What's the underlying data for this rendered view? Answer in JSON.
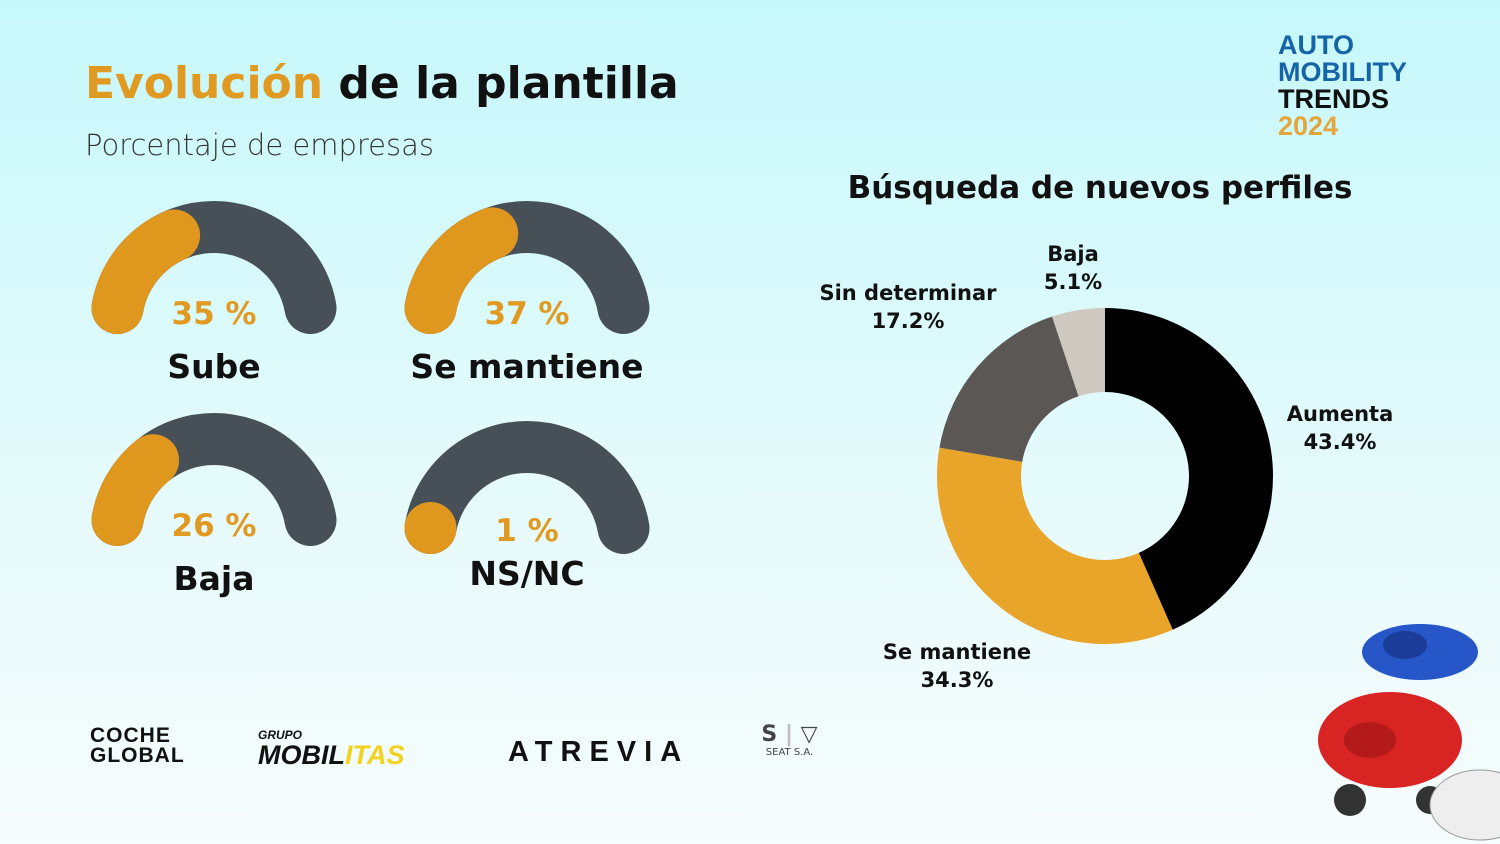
{
  "header": {
    "title_accent": "Evolución",
    "title_rest": " de la plantilla",
    "subtitle": "Porcentaje de empresas"
  },
  "brand": {
    "line1": "AUTO",
    "line2": "MOBILITY",
    "line3": "TRENDS",
    "line4": "2024"
  },
  "chart_data": [
    {
      "type": "gauge",
      "title": "Evolución de la plantilla",
      "subtitle": "Porcentaje de empresas",
      "items": [
        {
          "label": "Sube",
          "value": 35,
          "display": "35 %"
        },
        {
          "label": "Se mantiene",
          "value": 37,
          "display": "37 %"
        },
        {
          "label": "Baja",
          "value": 26,
          "display": "26 %"
        },
        {
          "label": "NS/NC",
          "value": 1,
          "display": "1 %"
        }
      ],
      "colors": {
        "fill": "#e0971e",
        "track": "#474f57"
      }
    },
    {
      "type": "pie",
      "subtype": "donut",
      "title": "Búsqueda de nuevos perfiles",
      "slices": [
        {
          "label": "Aumenta",
          "value": 43.4,
          "display": "43.4%",
          "color": "#000000"
        },
        {
          "label": "Se mantiene",
          "value": 34.3,
          "display": "34.3%",
          "color": "#e8a52a"
        },
        {
          "label": "Sin determinar",
          "value": 17.2,
          "display": "17.2%",
          "color": "#5a5754"
        },
        {
          "label": "Baja",
          "value": 5.1,
          "display": "5.1%",
          "color": "#cfc8c0"
        }
      ]
    }
  ],
  "logos": {
    "coche1": "COCHE",
    "coche2": "GLOBAL",
    "grupo": "GRUPO",
    "mobilitas_a": "MOBIL",
    "mobilitas_b": "ITAS",
    "atrevia": "ATREVIA",
    "seat": "SEAT S.A."
  }
}
